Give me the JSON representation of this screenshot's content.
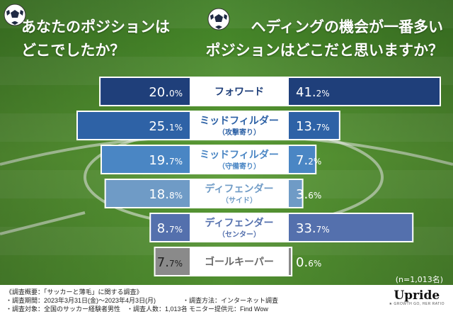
{
  "titles": {
    "left_line1": "あなたのポジションは",
    "left_line2": "どこでしたか？",
    "right_line1": "ヘディングの機会が一番多い",
    "right_line2": "ポジションはどこだと思いますか？"
  },
  "chart_data": {
    "type": "bar",
    "orientation": "horizontal-butterfly",
    "categories": [
      {
        "line1": "フォワード",
        "line2": ""
      },
      {
        "line1": "ミッドフィルダー",
        "line2": "（攻撃寄り）"
      },
      {
        "line1": "ミッドフィルダー",
        "line2": "（守備寄り）"
      },
      {
        "line1": "ディフェンダー",
        "line2": "（サイド）"
      },
      {
        "line1": "ディフェンダー",
        "line2": "（センター）"
      },
      {
        "line1": "ゴールキーパー",
        "line2": ""
      }
    ],
    "series": [
      {
        "side": "left",
        "values": [
          20.0,
          25.1,
          19.7,
          18.8,
          8.7,
          7.7
        ],
        "labels_main": [
          "20.",
          "25.",
          "19.",
          "18.",
          "8.",
          "7."
        ],
        "labels_dec": [
          "0%",
          "1%",
          "7%",
          "8%",
          "7%",
          "7%"
        ]
      },
      {
        "side": "right",
        "values": [
          41.2,
          13.7,
          7.2,
          3.6,
          33.7,
          0.6
        ],
        "labels_main": [
          "41.",
          "13.",
          "7.",
          "3.",
          "33.",
          "0."
        ],
        "labels_dec": [
          "2%",
          "7%",
          "2%",
          "6%",
          "7%",
          "6%"
        ]
      }
    ],
    "row_colors": [
      "#1f3f7a",
      "#2e62a6",
      "#4a86c4",
      "#6f9bc6",
      "#5470ad",
      "#8a8a8a"
    ],
    "note": "(n=1,013名)"
  },
  "footer": {
    "col1": [
      "《調査概要：「サッカーと薄毛」に関する調査》",
      "・調査期間：2023年3月31日(金)～2023年4月3日(月)",
      "・調査対象：全国のサッカー経験者男性　・調査人数：1,013名"
    ],
    "col2": [
      "・調査方法：インターネット調査",
      "・モニター提供元：Find Wow"
    ],
    "logo": "Upride",
    "logo_sub": "★ GROWTH GO, HER RATIO"
  }
}
